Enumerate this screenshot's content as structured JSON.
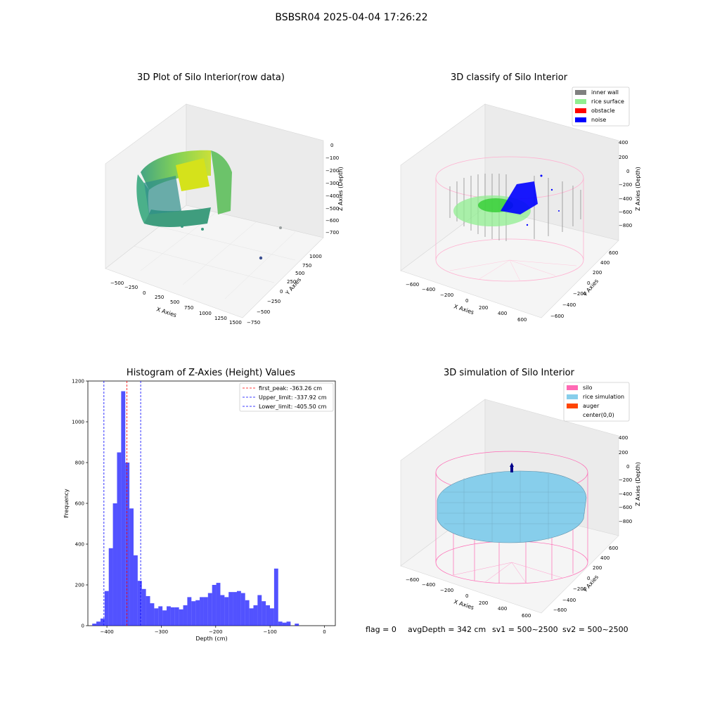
{
  "suptitle": "BSBSR04 2025-04-04 17:26:22",
  "panels": {
    "raw": {
      "title": "3D Plot of Silo Interior(row data)",
      "x_label": "X Axies",
      "y_label": "Y Axies",
      "z_label": "Z Axies (Depth)",
      "x_ticks": [
        "−500",
        "−250",
        "0",
        "250",
        "500",
        "750",
        "1000",
        "1250",
        "1500"
      ],
      "y_ticks": [
        "−750",
        "−500",
        "−250",
        "0",
        "250",
        "500",
        "750",
        "1000"
      ],
      "z_ticks": [
        "0",
        "−100",
        "−200",
        "−300",
        "−400",
        "−500",
        "−600",
        "−700"
      ]
    },
    "classify": {
      "title": "3D classify of Silo Interior",
      "x_label": "X Axies",
      "y_label": "Y Axies",
      "z_label": "Z Axies (Depth)",
      "x_ticks": [
        "−600",
        "−400",
        "−200",
        "0",
        "200",
        "400",
        "600"
      ],
      "y_ticks": [
        "−600",
        "−400",
        "−200",
        "0",
        "200",
        "400",
        "600"
      ],
      "z_ticks": [
        "400",
        "200",
        "0",
        "−200",
        "−400",
        "−600",
        "−800"
      ],
      "legend": [
        {
          "label": "inner wall",
          "color": "#808080"
        },
        {
          "label": "rice surface",
          "color": "#90ee90"
        },
        {
          "label": "obstacle",
          "color": "#ff0000"
        },
        {
          "label": "noise",
          "color": "#0000ff"
        }
      ]
    },
    "simulation": {
      "title": "3D simulation of Silo Interior",
      "x_label": "X Axies",
      "y_label": "Y Axies",
      "z_label": "Z Axies (Depth)",
      "x_ticks": [
        "−600",
        "−400",
        "−200",
        "0",
        "200",
        "400",
        "600"
      ],
      "y_ticks": [
        "−600",
        "−400",
        "−200",
        "0",
        "200",
        "400",
        "600"
      ],
      "z_ticks": [
        "400",
        "200",
        "0",
        "−200",
        "−400",
        "−600",
        "−800"
      ],
      "legend": [
        {
          "label": "silo",
          "color": "#ff69b4"
        },
        {
          "label": "rice simulation",
          "color": "#87ceeb"
        },
        {
          "label": "auger",
          "color": "#ff4500"
        },
        {
          "label": "center(0,0)",
          "color": "none"
        }
      ]
    }
  },
  "footer": {
    "flag": "flag = 0",
    "avg_depth": "avgDepth = 342 cm",
    "sv1": "sv1 = 500~2500",
    "sv2": "sv2 = 500~2500"
  },
  "chart_data": {
    "type": "bar",
    "title": "Histogram of Z-Axies (Height) Values",
    "xlabel": "Depth (cm)",
    "ylabel": "Frequency",
    "xlim": [
      -435,
      20
    ],
    "ylim": [
      0,
      1200
    ],
    "x_ticks": [
      -400,
      -300,
      -200,
      -100,
      0
    ],
    "y_ticks": [
      0,
      200,
      400,
      600,
      800,
      1000,
      1200
    ],
    "bin_start": -427,
    "bin_width": 7.6,
    "values": [
      10,
      20,
      35,
      170,
      380,
      600,
      850,
      1150,
      800,
      575,
      345,
      220,
      180,
      145,
      110,
      85,
      95,
      75,
      95,
      90,
      90,
      80,
      100,
      140,
      120,
      125,
      140,
      140,
      160,
      200,
      210,
      150,
      140,
      165,
      165,
      170,
      160,
      125,
      85,
      100,
      150,
      120,
      100,
      85,
      280,
      20,
      15,
      20,
      0,
      10
    ],
    "series_color": "#0000ff",
    "reference_lines": [
      {
        "label": "first_peak: -363.26 cm",
        "x": -363.26,
        "color": "#ff0000"
      },
      {
        "label": "Upper_limit: -337.92 cm",
        "x": -337.92,
        "color": "#0000ff"
      },
      {
        "label": "Lower_limit: -405.50 cm",
        "x": -405.5,
        "color": "#0000ff"
      }
    ],
    "legend_placement": "top-right"
  }
}
